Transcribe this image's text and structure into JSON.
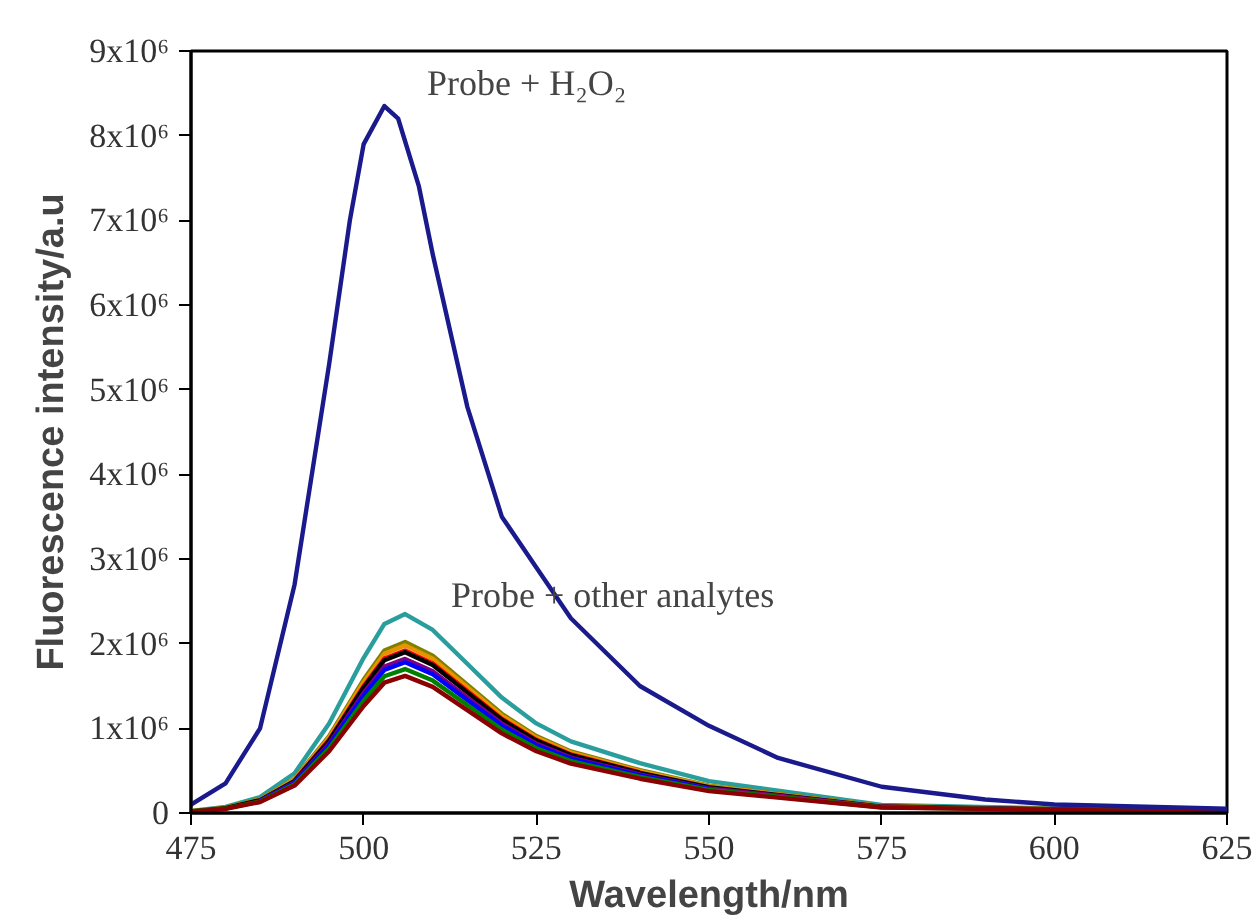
{
  "chart_data": {
    "type": "line",
    "xlabel": "Wavelength/nm",
    "ylabel": "Fluorescence intensity/a.u",
    "x": [
      475,
      480,
      485,
      490,
      495,
      500,
      503,
      506,
      510,
      515,
      520,
      525,
      530,
      540,
      550,
      575,
      625
    ],
    "xlim": [
      475,
      625
    ],
    "xticks": [
      475,
      500,
      525,
      550,
      575,
      600,
      625
    ],
    "ylim": [
      0,
      9000000
    ],
    "yticks": [
      {
        "value": 0,
        "label": "0"
      },
      {
        "value": 1000000,
        "label": "1x10⁶"
      },
      {
        "value": 2000000,
        "label": "2x10⁶"
      },
      {
        "value": 3000000,
        "label": "3x10⁶"
      },
      {
        "value": 4000000,
        "label": "4x10⁶"
      },
      {
        "value": 5000000,
        "label": "5x10⁶"
      },
      {
        "value": 6000000,
        "label": "6x10⁶"
      },
      {
        "value": 7000000,
        "label": "7x10⁶"
      },
      {
        "value": 8000000,
        "label": "8x10⁶"
      },
      {
        "value": 9000000,
        "label": "9x10⁶"
      }
    ],
    "grid": false,
    "marker": "none",
    "line_style": "solid",
    "annotations": [
      "Probe + H₂O₂",
      "Probe + other analytes"
    ],
    "series": [
      {
        "color": "#2a9d9d",
        "values": [
          24000,
          71000,
          188000,
          470000,
          1058000,
          1833000,
          2233000,
          2350000,
          2162000,
          1763000,
          1363000,
          1058000,
          846000,
          588000,
          376000,
          94000,
          14000
        ]
      },
      {
        "color": "#808000",
        "values": [
          20000,
          61000,
          162000,
          404000,
          909000,
          1576000,
          1919000,
          2020000,
          1858000,
          1515000,
          1172000,
          909000,
          727000,
          505000,
          323000,
          81000,
          12000
        ]
      },
      {
        "color": "#e69500",
        "values": [
          20000,
          59000,
          158000,
          396000,
          891000,
          1544000,
          1881000,
          1980000,
          1822000,
          1485000,
          1148000,
          891000,
          713000,
          495000,
          317000,
          79000,
          12000
        ]
      },
      {
        "color": "#ff0000",
        "values": [
          null,
          null,
          null,
          384000,
          864000,
          1498000,
          1824000,
          1920000,
          1766000,
          1440000,
          1114000,
          864000,
          691000,
          480000,
          null,
          null,
          null
        ]
      },
      {
        "color": "#000000",
        "values": [
          19000,
          57000,
          152000,
          380000,
          855000,
          1482000,
          1805000,
          1900000,
          1748000,
          1425000,
          1102000,
          855000,
          684000,
          475000,
          304000,
          76000,
          11000
        ]
      },
      {
        "color": "#800080",
        "values": [
          null,
          null,
          146000,
          364000,
          819000,
          1420000,
          1729000,
          1820000,
          1674000,
          1365000,
          1056000,
          819000,
          655000,
          455000,
          291000,
          73000,
          11000
        ]
      },
      {
        "color": "#0000ff",
        "values": [
          null,
          null,
          142000,
          356000,
          801000,
          1388000,
          1691000,
          1780000,
          1638000,
          1335000,
          1032000,
          801000,
          641000,
          445000,
          285000,
          null,
          null
        ]
      },
      {
        "color": "#008000",
        "values": [
          17000,
          51000,
          136000,
          340000,
          765000,
          1326000,
          1615000,
          1700000,
          1564000,
          1275000,
          986000,
          765000,
          612000,
          425000,
          272000,
          68000,
          10000
        ]
      },
      {
        "color": "#8b0000",
        "values": [
          16000,
          49000,
          130000,
          324000,
          729000,
          1264000,
          1539000,
          1620000,
          1490000,
          1215000,
          940000,
          729000,
          583000,
          405000,
          259000,
          65000,
          10000
        ]
      },
      {
        "color": "#1a1a8c",
        "x": [
          475,
          480,
          485,
          490,
          495,
          498,
          500,
          503,
          505,
          508,
          510,
          515,
          520,
          525,
          530,
          540,
          550,
          560,
          575,
          590,
          600,
          625
        ],
        "values": [
          100000,
          350000,
          1000000,
          2700000,
          5300000,
          7000000,
          7900000,
          8350000,
          8200000,
          7400000,
          6600000,
          4800000,
          3500000,
          2900000,
          2300000,
          1500000,
          1030000,
          650000,
          310000,
          160000,
          100000,
          50000
        ]
      }
    ]
  }
}
